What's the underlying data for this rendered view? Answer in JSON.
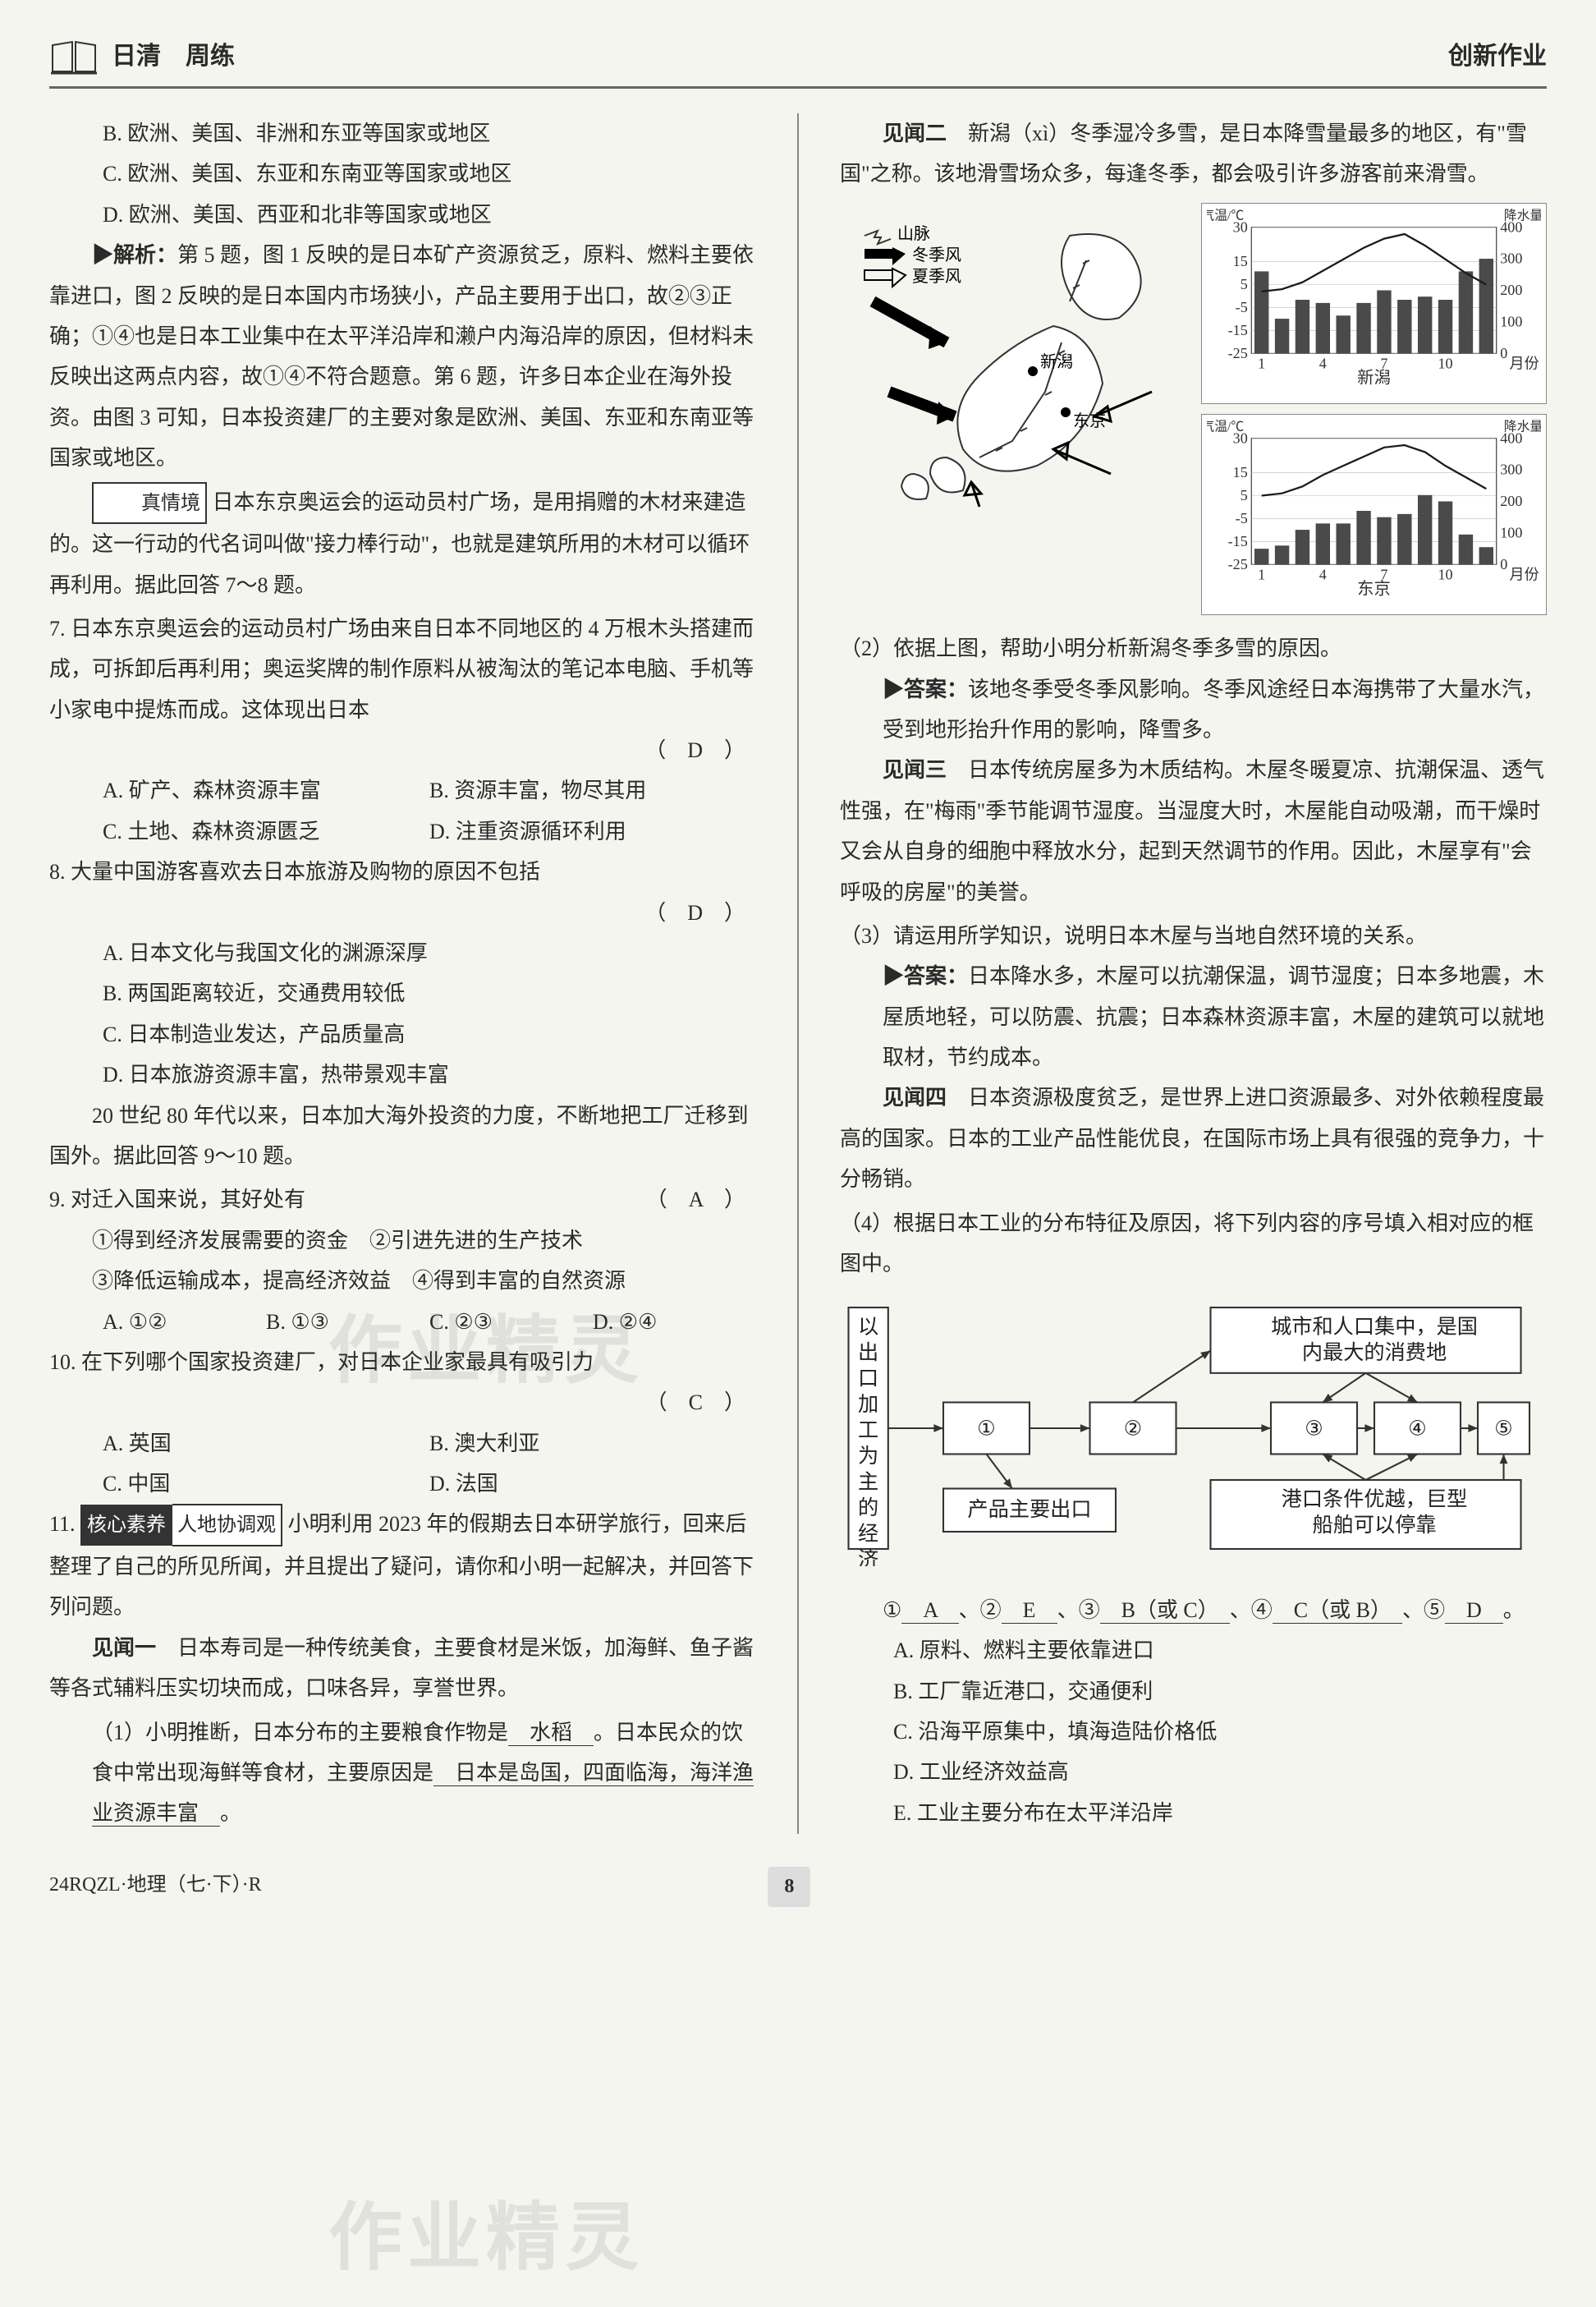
{
  "header": {
    "left_title": "日清　周练",
    "right_title": "创新作业"
  },
  "left": {
    "opts_5_6": {
      "B": "B. 欧洲、美国、非洲和东亚等国家或地区",
      "C": "C. 欧洲、美国、东亚和东南亚等国家或地区",
      "D": "D. 欧洲、美国、西亚和北非等国家或地区"
    },
    "analysis_lead": "▶解析：",
    "analysis_body": "第 5 题，图 1 反映的是日本矿产资源贫乏，原料、燃料主要依靠进口，图 2 反映的是日本国内市场狭小，产品主要用于出口，故②③正确；①④也是日本工业集中在太平洋沿岸和濑户内海沿岸的原因，但材料未反映出这两点内容，故①④不符合题意。第 6 题，许多日本企业在海外投资。由图 3 可知，日本投资建厂的主要对象是欧洲、美国、东亚和东南亚等国家或地区。",
    "situation_tag": "真情境",
    "situation_body": "日本东京奥运会的运动员村广场，是用捐赠的木材来建造的。这一行动的代名词叫做\"接力棒行动\"，也就是建筑所用的木材可以循环再利用。据此回答 7～8 题。",
    "q7": {
      "stem": "7. 日本东京奥运会的运动员村广场由来自日本不同地区的 4 万根木头搭建而成，可拆卸后再利用；奥运奖牌的制作原料从被淘汰的笔记本电脑、手机等小家电中提炼而成。这体现出日本",
      "ans": "（　D　）",
      "A": "A. 矿产、森林资源丰富",
      "B": "B. 资源丰富，物尽其用",
      "C": "C. 土地、森林资源匮乏",
      "D": "D. 注重资源循环利用"
    },
    "q8": {
      "stem": "8. 大量中国游客喜欢去日本旅游及购物的原因不包括",
      "ans": "（　D　）",
      "A": "A. 日本文化与我国文化的渊源深厚",
      "B": "B. 两国距离较近，交通费用较低",
      "C": "C. 日本制造业发达，产品质量高",
      "D": "D. 日本旅游资源丰富，热带景观丰富"
    },
    "intro_9_10": "20 世纪 80 年代以来，日本加大海外投资的力度，不断地把工厂迁移到国外。据此回答 9～10 题。",
    "q9": {
      "stem": "9. 对迁入国来说，其好处有",
      "ans": "（　A　）",
      "line1": "①得到经济发展需要的资金　②引进先进的生产技术",
      "line2": "③降低运输成本，提高经济效益　④得到丰富的自然资源",
      "A": "A. ①②",
      "B": "B. ①③",
      "C": "C. ②③",
      "D": "D. ②④"
    },
    "q10": {
      "stem": "10. 在下列哪个国家投资建厂，对日本企业家最具有吸引力",
      "ans": "（　C　）",
      "A": "A. 英国",
      "B": "B. 澳大利亚",
      "C": "C. 中国",
      "D": "D. 法国"
    },
    "q11": {
      "tag1": "核心素养",
      "tag2": "人地协调观",
      "stem": "小明利用 2023 年的假期去日本研学旅行，回来后整理了自己的所见所闻，并且提出了疑问，请你和小明一起解决，并回答下列问题。",
      "jw1_lead": "见闻一",
      "jw1_body": "日本寿司是一种传统美食，主要食材是米饭，加海鲜、鱼子酱等各式辅料压实切块而成，口味各异，享誉世界。",
      "sub1_pre": "（1）小明推断，日本分布的主要粮食作物是",
      "sub1_ans1": "　水稻　",
      "sub1_mid": "。日本民众的饮食中常出现海鲜等食材，主要原因是",
      "sub1_ans2": "　日本是岛国，四面临海，海洋渔业资源丰富　",
      "sub1_end": "。"
    }
  },
  "right": {
    "jw2_lead": "见闻二",
    "jw2_body": "新潟（xì）冬季湿冷多雪，是日本降雪量最多的地区，有\"雪国\"之称。该地滑雪场众多，每逢冬季，都会吸引许多游客前来滑雪。",
    "map_labels": {
      "mountain": "山脉",
      "winter": "冬季风",
      "summer": "夏季风",
      "niigata": "新潟",
      "tokyo": "东京"
    },
    "chart_axes": {
      "temp": "气温/℃",
      "precip": "降水量/毫米"
    },
    "chart1_city": "新潟",
    "chart2_city": "东京",
    "chart": {
      "type": "combo-bar-line",
      "temp_ylim": [
        -25,
        30
      ],
      "temp_ticks": [
        -25,
        -15,
        -5,
        5,
        15,
        30
      ],
      "precip_ylim": [
        0,
        400
      ],
      "precip_ticks": [
        0,
        100,
        200,
        300,
        400
      ],
      "months": [
        1,
        4,
        7,
        10
      ],
      "niigata_precip": [
        260,
        110,
        170,
        160,
        120,
        160,
        200,
        170,
        180,
        170,
        260,
        300
      ],
      "niigata_temp": [
        2,
        3,
        6,
        11,
        16,
        21,
        25,
        27,
        22,
        16,
        10,
        5
      ],
      "tokyo_precip": [
        50,
        60,
        110,
        130,
        130,
        170,
        150,
        160,
        220,
        200,
        95,
        55
      ],
      "tokyo_temp": [
        5,
        6,
        9,
        14,
        18,
        22,
        26,
        27,
        24,
        18,
        13,
        8
      ],
      "bar_color": "#4a4a4a",
      "line_color": "#1a1a1a",
      "grid_color": "#bbb",
      "bg": "#ffffff",
      "axis_fontsize": 16
    },
    "sub2_q": "（2）依据上图，帮助小明分析新潟冬季多雪的原因。",
    "sub2_ans_lead": "▶答案：",
    "sub2_ans": "该地冬季受冬季风影响。冬季风途经日本海携带了大量水汽，受到地形抬升作用的影响，降雪多。",
    "jw3_lead": "见闻三",
    "jw3_body": "日本传统房屋多为木质结构。木屋冬暖夏凉、抗潮保温、透气性强，在\"梅雨\"季节能调节湿度。当湿度大时，木屋能自动吸潮，而干燥时又会从自身的细胞中释放水分，起到天然调节的作用。因此，木屋享有\"会呼吸的房屋\"的美誉。",
    "sub3_q": "（3）请运用所学知识，说明日本木屋与当地自然环境的关系。",
    "sub3_ans_lead": "▶答案：",
    "sub3_ans": "日本降水多，木屋可以抗潮保温，调节湿度；日本多地震，木屋质地轻，可以防震、抗震；日本森林资源丰富，木屋的建筑可以就地取材，节约成本。",
    "jw4_lead": "见闻四",
    "jw4_body": "日本资源极度贫乏，是世界上进口资源最多、对外依赖程度最高的国家。日本的工业产品性能优良，在国际市场上具有很强的竞争力，十分畅销。",
    "sub4_q": "（4）根据日本工业的分布特征及原因，将下列内容的序号填入相对应的框图中。",
    "diagram": {
      "left_label": "以出口加工为主的经济",
      "box_top": "城市和人口集中，是国内最大的消费地",
      "box_bottom_left": "产品主要出口",
      "box_bottom_right": "港口条件优越，巨型船舶可以停靠",
      "circles": [
        "①",
        "②",
        "③",
        "④",
        "⑤"
      ],
      "border_color": "#333",
      "bg": "#ffffff",
      "fontsize": 24
    },
    "fill_prefix": "①",
    "fill_a": "　A　",
    "fill_2": "、②",
    "fill_e": "　E　",
    "fill_3": "、③",
    "fill_bc": "　B（或 C）　",
    "fill_4": "、④",
    "fill_cb": "　C（或 B）　",
    "fill_5": "、⑤",
    "fill_d": "　D　",
    "fill_end": "。",
    "optA": "A. 原料、燃料主要依靠进口",
    "optB": "B. 工厂靠近港口，交通便利",
    "optC": "C. 沿海平原集中，填海造陆价格低",
    "optD": "D. 工业经济效益高",
    "optE": "E. 工业主要分布在太平洋沿岸"
  },
  "footer": {
    "left": "24RQZL·地理（七·下）·R",
    "page": "8"
  },
  "watermark": "作业精灵"
}
